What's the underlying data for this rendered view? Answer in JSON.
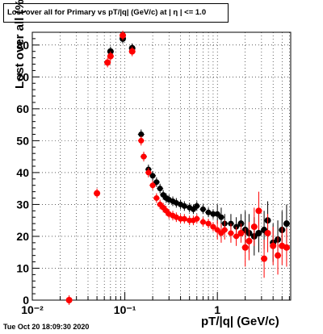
{
  "title": "Lost over all for Primary vs pT/|q| (GeV/c) at | η | <= 1.0",
  "timestamp": "Tue Oct 20 18:09:30 2020",
  "colors": {
    "series_black": "#000000",
    "series_red": "#ff0000",
    "grid": "#000000",
    "background": "#ffffff"
  },
  "chart_data": {
    "type": "scatter",
    "title": "Lost over all for Primary vs pT/|q| (GeV/c) at | η | <= 1.0",
    "xlabel": "pT/|q| (GeV/c)",
    "ylabel": "Lost over all (%)",
    "xscale": "log",
    "xlim": [
      0.01,
      6.2
    ],
    "ylim": [
      0,
      84
    ],
    "grid": true,
    "x_ticks": [
      {
        "value": 0.01,
        "label": "10⁻²"
      },
      {
        "value": 0.1,
        "label": "10⁻¹"
      },
      {
        "value": 1,
        "label": "1"
      }
    ],
    "y_ticks": [
      0,
      10,
      20,
      30,
      40,
      50,
      60,
      70,
      80
    ],
    "series": [
      {
        "color": "black",
        "points": [
          [
            0.07,
            78
          ],
          [
            0.095,
            82
          ],
          [
            0.12,
            79
          ],
          [
            0.15,
            52
          ],
          [
            0.16,
            45
          ],
          [
            0.18,
            41
          ],
          [
            0.2,
            39
          ],
          [
            0.22,
            37
          ],
          [
            0.24,
            35
          ],
          [
            0.26,
            33
          ],
          [
            0.28,
            32
          ],
          [
            0.3,
            31.5
          ],
          [
            0.33,
            31
          ],
          [
            0.36,
            30.5
          ],
          [
            0.4,
            30
          ],
          [
            0.44,
            29.5
          ],
          [
            0.5,
            29
          ],
          [
            0.55,
            28.5
          ],
          [
            0.6,
            29.5
          ],
          [
            0.7,
            28.5
          ],
          [
            0.8,
            27.5
          ],
          [
            0.9,
            27
          ],
          [
            1.0,
            27
          ],
          [
            1.1,
            26
          ],
          [
            1.2,
            24
          ],
          [
            1.4,
            24
          ],
          [
            1.6,
            23
          ],
          [
            1.8,
            24
          ],
          [
            2.0,
            22
          ],
          [
            2.2,
            21
          ],
          [
            2.5,
            20
          ],
          [
            2.8,
            21
          ],
          [
            3.2,
            22
          ],
          [
            3.5,
            25
          ],
          [
            4.0,
            18
          ],
          [
            4.5,
            19
          ],
          [
            5.0,
            22
          ],
          [
            5.6,
            24
          ]
        ]
      },
      {
        "color": "red",
        "points": [
          [
            0.025,
            0
          ],
          [
            0.05,
            33.5
          ],
          [
            0.065,
            74.5
          ],
          [
            0.07,
            76.5
          ],
          [
            0.095,
            83
          ],
          [
            0.12,
            78
          ],
          [
            0.15,
            50
          ],
          [
            0.16,
            45
          ],
          [
            0.18,
            40
          ],
          [
            0.2,
            36
          ],
          [
            0.22,
            32
          ],
          [
            0.24,
            30
          ],
          [
            0.26,
            29
          ],
          [
            0.28,
            28
          ],
          [
            0.3,
            27
          ],
          [
            0.33,
            26.5
          ],
          [
            0.36,
            26
          ],
          [
            0.4,
            25.5
          ],
          [
            0.44,
            25.5
          ],
          [
            0.5,
            25
          ],
          [
            0.55,
            25
          ],
          [
            0.6,
            25.5
          ],
          [
            0.7,
            24.5
          ],
          [
            0.8,
            24
          ],
          [
            0.9,
            23
          ],
          [
            1.0,
            22
          ],
          [
            1.1,
            21
          ],
          [
            1.2,
            22
          ],
          [
            1.4,
            21
          ],
          [
            1.6,
            20
          ],
          [
            1.8,
            21
          ],
          [
            2.0,
            16.5
          ],
          [
            2.2,
            18.5
          ],
          [
            2.5,
            23
          ],
          [
            2.8,
            28
          ],
          [
            3.2,
            13
          ],
          [
            3.5,
            21
          ],
          [
            4.0,
            17
          ],
          [
            4.5,
            14
          ],
          [
            5.0,
            17
          ],
          [
            5.6,
            16.5
          ]
        ]
      }
    ]
  }
}
